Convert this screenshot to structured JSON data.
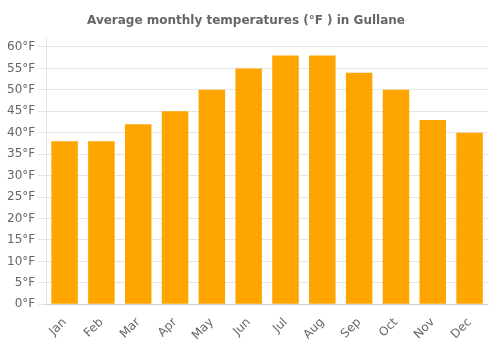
{
  "chart_data": {
    "type": "bar",
    "title": "Average monthly temperatures (°F ) in Gullane",
    "categories": [
      "Jan",
      "Feb",
      "Mar",
      "Apr",
      "May",
      "Jun",
      "Jul",
      "Aug",
      "Sep",
      "Oct",
      "Nov",
      "Dec"
    ],
    "values": [
      38,
      38,
      42,
      45,
      50,
      55,
      58,
      58,
      54,
      50,
      43,
      40
    ],
    "color": "#FFA500",
    "ylim": [
      0,
      62
    ],
    "yticks": [
      {
        "value": 0,
        "label": "0°F"
      },
      {
        "value": 5,
        "label": "5°F"
      },
      {
        "value": 10,
        "label": "10°F"
      },
      {
        "value": 15,
        "label": "15°F"
      },
      {
        "value": 20,
        "label": "20°F"
      },
      {
        "value": 25,
        "label": "25°F"
      },
      {
        "value": 30,
        "label": "30°F"
      },
      {
        "value": 35,
        "label": "35°F"
      },
      {
        "value": 40,
        "label": "40°F"
      },
      {
        "value": 45,
        "label": "45°F"
      },
      {
        "value": 50,
        "label": "50°F"
      },
      {
        "value": 55,
        "label": "55°F"
      },
      {
        "value": 60,
        "label": "60°F"
      }
    ],
    "grid": true
  }
}
